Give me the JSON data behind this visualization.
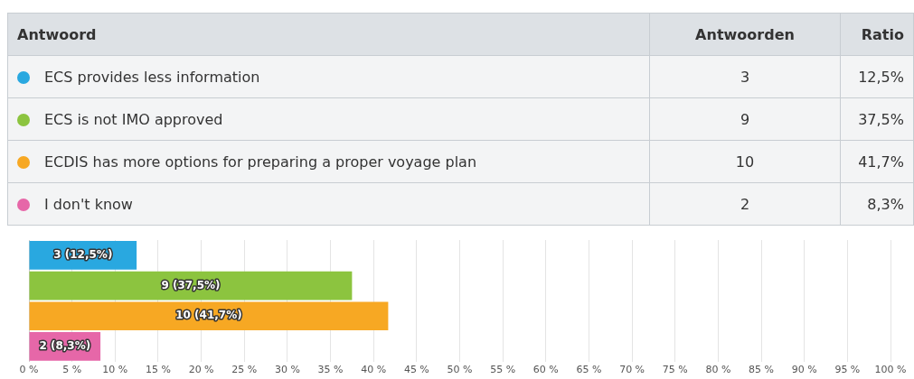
{
  "chart_data": {
    "type": "bar",
    "orientation": "horizontal",
    "categories": [
      null,
      null,
      null,
      null
    ],
    "values": [
      12.5,
      37.5,
      41.7,
      8.3
    ],
    "colors": [
      "#29a8e0",
      "#8cc43f",
      "#f7a823",
      "#e667a8"
    ],
    "value_labels": [
      "3 (12,5%)",
      "9 (37,5%)",
      "10 (41,7%)",
      "2 (8,3%)"
    ],
    "annotations": [
      "Antwoord",
      "Antwoorden",
      "Ratio",
      "ECS provides less information",
      "3",
      "12,5%",
      "ECS is not IMO approved",
      "9",
      "37,5%",
      "ECDIS has more options for preparing a proper voyage plan",
      "10",
      "41,7%",
      "I don't know",
      "2",
      "8,3%"
    ],
    "xlim": [
      0,
      100
    ],
    "xticks": [
      {
        "value": 0,
        "label": "0 %"
      },
      {
        "value": 5,
        "label": "5 %"
      },
      {
        "value": 10,
        "label": "10 %"
      },
      {
        "value": 15,
        "label": "15 %"
      },
      {
        "value": 20,
        "label": "20 %"
      },
      {
        "value": 25,
        "label": "25 %"
      },
      {
        "value": 30,
        "label": "30 %"
      },
      {
        "value": 35,
        "label": "35 %"
      },
      {
        "value": 40,
        "label": "40 %"
      },
      {
        "value": 45,
        "label": "45 %"
      },
      {
        "value": 50,
        "label": "50 %"
      },
      {
        "value": 55,
        "label": "55 %"
      },
      {
        "value": 60,
        "label": "60 %"
      },
      {
        "value": 65,
        "label": "65 %"
      },
      {
        "value": 70,
        "label": "70 %"
      },
      {
        "value": 75,
        "label": "75 %"
      },
      {
        "value": 80,
        "label": "80 %"
      },
      {
        "value": 85,
        "label": "85 %"
      },
      {
        "value": 90,
        "label": "90 %"
      },
      {
        "value": 95,
        "label": "95 %"
      },
      {
        "value": 100,
        "label": "100 %"
      }
    ],
    "grid": "x",
    "legend": false,
    "tick_labels": "x"
  }
}
